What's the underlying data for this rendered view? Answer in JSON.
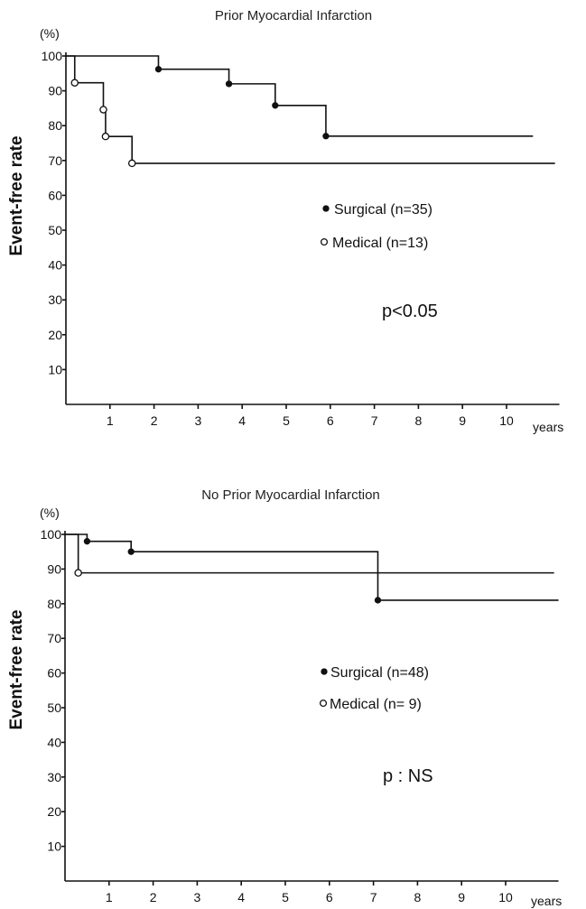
{
  "chart_data": [
    {
      "type": "line",
      "title": "Prior Myocardial Infarction",
      "y_unit": "(%)",
      "ylabel": "Event-free rate",
      "xlabel": "years",
      "ylim": [
        0,
        100
      ],
      "yticks": [
        10,
        20,
        30,
        40,
        50,
        60,
        70,
        80,
        90,
        100
      ],
      "xlim": [
        0,
        11.2
      ],
      "xticks": [
        1,
        2,
        3,
        4,
        5,
        6,
        7,
        8,
        9,
        10
      ],
      "legend_position": "middle-right",
      "series": [
        {
          "name": "Surgical (n=35)",
          "marker": "filled-circle",
          "steps": [
            [
              0,
              100
            ],
            [
              2.1,
              96.2
            ],
            [
              3.7,
              92
            ],
            [
              4.75,
              85.8
            ],
            [
              5.9,
              77
            ]
          ],
          "end_x": 10.6
        },
        {
          "name": "Medical (n=13)",
          "marker": "open-circle",
          "steps": [
            [
              0,
              100
            ],
            [
              0.2,
              92.3
            ],
            [
              0.85,
              84.6
            ],
            [
              0.9,
              76.9
            ],
            [
              1.5,
              69.2
            ]
          ],
          "end_x": 11.1
        }
      ],
      "annotation": "p<0.05"
    },
    {
      "type": "line",
      "title": "No Prior Myocardial Infarction",
      "y_unit": "(%)",
      "ylabel": "Event-free rate",
      "xlabel": "years",
      "ylim": [
        0,
        100
      ],
      "yticks": [
        10,
        20,
        30,
        40,
        50,
        60,
        70,
        80,
        90,
        100
      ],
      "xlim": [
        0,
        11.2
      ],
      "xticks": [
        1,
        2,
        3,
        4,
        5,
        6,
        7,
        8,
        9,
        10
      ],
      "legend_position": "middle-right",
      "series": [
        {
          "name": "Surgical (n=48)",
          "marker": "filled-circle",
          "steps": [
            [
              0,
              100
            ],
            [
              0.5,
              98
            ],
            [
              1.5,
              95
            ],
            [
              7.1,
              81
            ]
          ],
          "end_x": 11.2
        },
        {
          "name": "Medical (n= 9)",
          "marker": "open-circle",
          "steps": [
            [
              0,
              100
            ],
            [
              0.3,
              88.9
            ]
          ],
          "end_x": 11.1
        }
      ],
      "annotation": "p : NS"
    }
  ]
}
